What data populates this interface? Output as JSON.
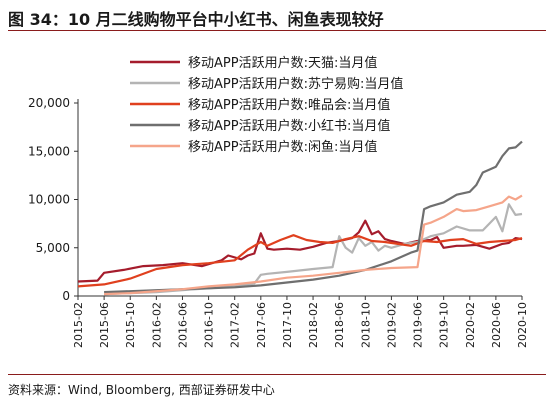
{
  "header": {
    "title": "图 34：10 月二线购物平台中小红书、闲鱼表现较好"
  },
  "footer": {
    "source": "资料来源：Wind, Bloomberg, 西部证券研发中心"
  },
  "chart_data": {
    "type": "line",
    "title": "",
    "xlabel": "",
    "ylabel": "",
    "ylim": [
      0,
      20000
    ],
    "yticks": [
      0,
      5000,
      10000,
      15000,
      20000
    ],
    "ytick_labels": [
      "0",
      "5,000",
      "10,000",
      "15,000",
      "20,000"
    ],
    "xrange": [
      "2015-02",
      "2020-10"
    ],
    "xtick_labels": [
      "2015-02",
      "2015-06",
      "2015-10",
      "2016-02",
      "2016-06",
      "2016-10",
      "2017-02",
      "2017-06",
      "2017-10",
      "2018-02",
      "2018-06",
      "2018-10",
      "2019-02",
      "2019-06",
      "2019-10",
      "2020-02",
      "2020-06",
      "2020-10"
    ],
    "grid": false,
    "legend_position": "top-center",
    "series": [
      {
        "name": "移动APP活跃用户数:天猫:当月值",
        "color": "#a51c2c",
        "x": [
          "2015-02",
          "2015-05",
          "2015-06",
          "2015-09",
          "2015-12",
          "2016-03",
          "2016-06",
          "2016-09",
          "2016-12",
          "2017-01",
          "2017-03",
          "2017-04",
          "2017-05",
          "2017-06",
          "2017-07",
          "2017-08",
          "2017-10",
          "2017-12",
          "2018-02",
          "2018-04",
          "2018-06",
          "2018-08",
          "2018-09",
          "2018-10",
          "2018-11",
          "2018-12",
          "2019-01",
          "2019-02",
          "2019-04",
          "2019-06",
          "2019-08",
          "2019-09",
          "2019-10",
          "2019-12",
          "2020-01",
          "2020-03",
          "2020-05",
          "2020-07",
          "2020-08",
          "2020-09",
          "2020-10"
        ],
        "y": [
          1500,
          1600,
          2400,
          2700,
          3100,
          3200,
          3400,
          3100,
          3700,
          4200,
          3800,
          4200,
          4400,
          6500,
          4900,
          4800,
          4900,
          4800,
          5100,
          5500,
          5700,
          6000,
          6600,
          7800,
          6400,
          6700,
          5900,
          5700,
          5400,
          5700,
          5800,
          6100,
          5000,
          5200,
          5200,
          5300,
          4900,
          5400,
          5500,
          6000,
          5900
        ]
      },
      {
        "name": "移动APP活跃用户数:苏宁易购:当月值",
        "color": "#b4b4b4",
        "x": [
          "2015-06",
          "2015-10",
          "2016-02",
          "2016-06",
          "2016-10",
          "2017-02",
          "2017-05",
          "2017-06",
          "2017-07",
          "2017-10",
          "2018-02",
          "2018-05",
          "2018-06",
          "2018-07",
          "2018-08",
          "2018-09",
          "2018-10",
          "2018-11",
          "2018-12",
          "2019-01",
          "2019-02",
          "2019-04",
          "2019-06",
          "2019-08",
          "2019-10",
          "2019-12",
          "2020-02",
          "2020-04",
          "2020-06",
          "2020-07",
          "2020-08",
          "2020-09",
          "2020-10"
        ],
        "y": [
          200,
          300,
          400,
          600,
          800,
          1000,
          1300,
          2200,
          2300,
          2500,
          2800,
          3000,
          6200,
          5000,
          4500,
          6000,
          5200,
          5600,
          4700,
          5200,
          5000,
          5400,
          5600,
          6200,
          6500,
          7200,
          6800,
          6800,
          8200,
          6700,
          9500,
          8400,
          8500
        ]
      },
      {
        "name": "移动APP活跃用户数:唯品会:当月值",
        "color": "#e0401e",
        "x": [
          "2015-02",
          "2015-06",
          "2015-10",
          "2016-02",
          "2016-06",
          "2016-10",
          "2017-02",
          "2017-04",
          "2017-06",
          "2017-07",
          "2017-09",
          "2017-11",
          "2018-01",
          "2018-03",
          "2018-05",
          "2018-07",
          "2018-09",
          "2018-11",
          "2019-01",
          "2019-03",
          "2019-05",
          "2019-07",
          "2019-09",
          "2019-11",
          "2020-01",
          "2020-03",
          "2020-05",
          "2020-07",
          "2020-09",
          "2020-10"
        ],
        "y": [
          1000,
          1200,
          1800,
          2800,
          3200,
          3400,
          3700,
          4800,
          5600,
          5200,
          5800,
          6300,
          5800,
          5600,
          5500,
          5900,
          6200,
          5700,
          5600,
          5400,
          5200,
          5700,
          5600,
          5800,
          5900,
          5400,
          5600,
          5700,
          5800,
          6000
        ]
      },
      {
        "name": "移动APP活跃用户数:小红书:当月值",
        "color": "#6f6f6f",
        "x": [
          "2015-06",
          "2015-10",
          "2016-02",
          "2016-06",
          "2016-10",
          "2017-02",
          "2017-06",
          "2017-10",
          "2018-02",
          "2018-06",
          "2018-10",
          "2019-02",
          "2019-05",
          "2019-06",
          "2019-07",
          "2019-08",
          "2019-10",
          "2019-12",
          "2020-02",
          "2020-03",
          "2020-04",
          "2020-05",
          "2020-06",
          "2020-07",
          "2020-08",
          "2020-09",
          "2020-10"
        ],
        "y": [
          400,
          500,
          600,
          700,
          800,
          900,
          1100,
          1400,
          1700,
          2100,
          2700,
          3600,
          4500,
          4700,
          9000,
          9300,
          9700,
          10500,
          10800,
          11500,
          12800,
          13100,
          13400,
          14500,
          15300,
          15400,
          16000
        ]
      },
      {
        "name": "移动APP活跃用户数:闲鱼:当月值",
        "color": "#f5a58a",
        "x": [
          "2015-06",
          "2015-10",
          "2016-02",
          "2016-06",
          "2016-10",
          "2017-02",
          "2017-06",
          "2017-10",
          "2018-02",
          "2018-06",
          "2018-10",
          "2019-02",
          "2019-06",
          "2019-07",
          "2019-08",
          "2019-10",
          "2019-12",
          "2020-01",
          "2020-03",
          "2020-05",
          "2020-07",
          "2020-08",
          "2020-09",
          "2020-10"
        ],
        "y": [
          200,
          300,
          500,
          700,
          1000,
          1200,
          1500,
          1900,
          2100,
          2400,
          2700,
          2900,
          3000,
          7400,
          7600,
          8200,
          9000,
          8800,
          8900,
          9300,
          9700,
          10300,
          10000,
          10400
        ]
      }
    ]
  }
}
